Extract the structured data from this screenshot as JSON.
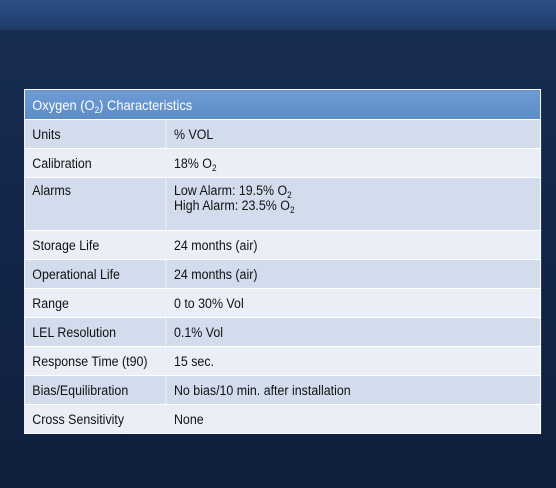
{
  "table": {
    "title_pre": "Oxygen (O",
    "title_sub": "2",
    "title_post": ")  Characteristics",
    "rows": [
      {
        "label": "Units",
        "value": "% VOL"
      },
      {
        "label": "Calibration",
        "value_pre": "18% O",
        "value_sub": "2"
      },
      {
        "label": "Alarms",
        "line1_pre": "Low Alarm: 19.5% O",
        "line1_sub": "2",
        "line2_pre": "High Alarm: 23.5% O",
        "line2_sub": "2"
      },
      {
        "label": "Storage Life",
        "value": "24 months (air)"
      },
      {
        "label": "Operational Life",
        "value": "24 months (air)"
      },
      {
        "label": "Range",
        "value": "0 to 30% Vol"
      },
      {
        "label": "LEL Resolution",
        "value": "0.1% Vol"
      },
      {
        "label": "Response Time (t90)",
        "value": "15 sec."
      },
      {
        "label": "Bias/Equilibration",
        "value": "No bias/10 min. after installation"
      },
      {
        "label": "Cross Sensitivity",
        "value": "None"
      }
    ]
  }
}
